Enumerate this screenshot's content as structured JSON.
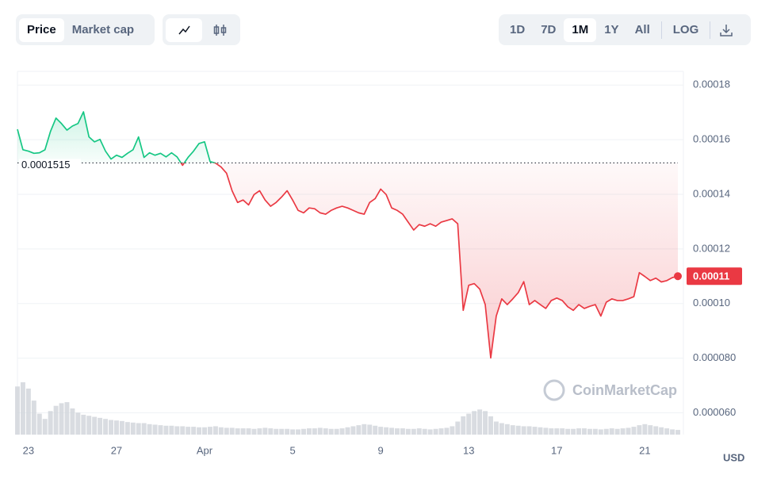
{
  "controls": {
    "metrics": [
      "Price",
      "Market cap"
    ],
    "ranges": [
      "1D",
      "7D",
      "1M",
      "1Y",
      "All"
    ],
    "scale": "LOG"
  },
  "watermark": "CoinMarketCap",
  "chart_data": {
    "type": "line",
    "categories": [
      null,
      null,
      "23",
      null,
      null,
      null,
      null,
      null,
      null,
      null,
      null,
      null,
      null,
      null,
      null,
      null,
      null,
      null,
      "27",
      null,
      null,
      null,
      null,
      null,
      null,
      null,
      null,
      null,
      null,
      null,
      null,
      null,
      null,
      null,
      "Apr",
      null,
      null,
      null,
      null,
      null,
      null,
      null,
      null,
      null,
      null,
      null,
      null,
      null,
      null,
      null,
      "5",
      null,
      null,
      null,
      null,
      null,
      null,
      null,
      null,
      null,
      null,
      null,
      null,
      null,
      null,
      null,
      "9",
      null,
      null,
      null,
      null,
      null,
      null,
      null,
      null,
      null,
      null,
      null,
      null,
      null,
      null,
      null,
      "13",
      null,
      null,
      null,
      null,
      null,
      null,
      null,
      null,
      null,
      null,
      null,
      null,
      null,
      null,
      null,
      "17",
      null,
      null,
      null,
      null,
      null,
      null,
      null,
      null,
      null,
      null,
      null,
      null,
      null,
      null,
      null,
      "21",
      null,
      null,
      null,
      null,
      null,
      null
    ],
    "values": [
      0.0001638,
      0.0001563,
      0.0001558,
      0.000155,
      0.0001552,
      0.0001563,
      0.000163,
      0.0001679,
      0.0001659,
      0.0001635,
      0.000165,
      0.0001659,
      0.0001702,
      0.000161,
      0.0001592,
      0.0001601,
      0.0001558,
      0.0001529,
      0.0001543,
      0.0001535,
      0.000155,
      0.0001563,
      0.000161,
      0.0001535,
      0.0001552,
      0.0001543,
      0.000155,
      0.0001537,
      0.0001552,
      0.0001537,
      0.0001506,
      0.0001535,
      0.0001558,
      0.0001586,
      0.0001592,
      0.000152,
      0.0001514,
      0.00015,
      0.0001477,
      0.0001413,
      0.000137,
      0.0001379,
      0.0001361,
      0.0001399,
      0.0001413,
      0.0001379,
      0.0001356,
      0.000137,
      0.000139,
      0.0001413,
      0.0001379,
      0.0001341,
      0.0001332,
      0.000135,
      0.0001347,
      0.0001332,
      0.0001327,
      0.0001341,
      0.000135,
      0.0001356,
      0.000135,
      0.0001341,
      0.0001332,
      0.0001327,
      0.000137,
      0.0001384,
      0.0001419,
      0.0001399,
      0.000135,
      0.0001341,
      0.0001327,
      0.0001298,
      0.0001269,
      0.0001289,
      0.0001283,
      0.0001292,
      0.0001283,
      0.0001298,
      0.0001304,
      0.000131,
      0.0001292,
      9.75e-05,
      0.0001067,
      0.0001073,
      0.0001053,
      9.96e-05,
      8.01e-05,
      9.54e-05,
      0.0001017,
      9.96e-05,
      0.0001017,
      0.000104,
      0.000108,
      9.96e-05,
      0.0001011,
      9.96e-05,
      9.82e-05,
      0.0001011,
      0.000102,
      0.0001011,
      9.88e-05,
      9.75e-05,
      9.96e-05,
      9.82e-05,
      9.9e-05,
      9.96e-05,
      9.54e-05,
      0.0001005,
      0.0001017,
      0.0001011,
      0.0001011,
      0.0001017,
      0.0001025,
      0.0001113,
      0.0001099,
      0.0001084,
      0.0001093,
      0.0001079,
      0.0001084,
      0.0001095,
      0.00011
    ],
    "volume": [
      92,
      100,
      88,
      65,
      40,
      30,
      45,
      55,
      60,
      62,
      50,
      42,
      38,
      36,
      34,
      32,
      30,
      28,
      27,
      26,
      24,
      23,
      22,
      22,
      20,
      19,
      18,
      17,
      17,
      16,
      16,
      15,
      15,
      14,
      14,
      15,
      16,
      14,
      13,
      13,
      12,
      12,
      12,
      11,
      12,
      13,
      12,
      11,
      11,
      11,
      10,
      10,
      11,
      12,
      12,
      13,
      12,
      11,
      11,
      12,
      14,
      16,
      18,
      20,
      19,
      17,
      15,
      14,
      13,
      12,
      12,
      11,
      11,
      12,
      11,
      10,
      11,
      12,
      13,
      16,
      25,
      35,
      40,
      45,
      48,
      45,
      35,
      25,
      22,
      20,
      18,
      17,
      16,
      16,
      15,
      14,
      13,
      12,
      12,
      12,
      11,
      11,
      12,
      12,
      11,
      11,
      10,
      11,
      12,
      11,
      12,
      13,
      15,
      18,
      20,
      18,
      16,
      14,
      12,
      10,
      9
    ],
    "baseline": 0.0001515,
    "ylim": [
      5.2e-05,
      0.000185
    ],
    "yticks": [
      {
        "value": 6e-05,
        "label": "0.000060"
      },
      {
        "value": 8e-05,
        "label": "0.000080"
      },
      {
        "value": 0.0001,
        "label": "0.00010"
      },
      0.00012,
      0.00014,
      0.00016,
      0.00018
    ],
    "ylabel": "USD",
    "up_color": "#16c784",
    "down_color": "#ea3943",
    "volume_color": "#cfd3da",
    "grid": true
  }
}
